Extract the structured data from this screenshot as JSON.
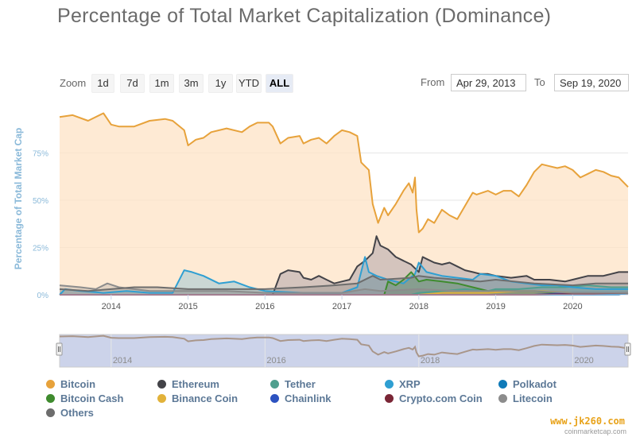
{
  "title": "Percentage of Total Market Capitalization (Dominance)",
  "zoom": {
    "label": "Zoom",
    "buttons": [
      "1d",
      "7d",
      "1m",
      "3m",
      "1y",
      "YTD",
      "ALL"
    ],
    "active": "ALL"
  },
  "range": {
    "from_label": "From",
    "from_value": "Apr 29, 2013",
    "to_label": "To",
    "to_value": "Sep 19, 2020"
  },
  "watermark": "www.jk260.com",
  "credits": "coinmarketcap.com",
  "chart_data": {
    "type": "area",
    "title": "Percentage of Total Market Capitalization (Dominance)",
    "ylabel": "Percentage of Total Market Cap",
    "xlabel": "",
    "xlim": [
      2013.33,
      2020.72
    ],
    "ylim": [
      0,
      100
    ],
    "y_ticks": [
      0,
      25,
      50,
      75
    ],
    "y_tick_labels": [
      "0%",
      "25%",
      "50%",
      "75%"
    ],
    "x_ticks": [
      2014,
      2015,
      2016,
      2017,
      2018,
      2019,
      2020
    ],
    "x_tick_labels": [
      "2014",
      "2015",
      "2016",
      "2017",
      "2018",
      "2019",
      "2020"
    ],
    "grid": true,
    "legend_position": "bottom",
    "series": [
      {
        "name": "Bitcoin",
        "color": "#e7a23b",
        "fill": "#fde3c5",
        "points": [
          [
            2013.33,
            94
          ],
          [
            2013.5,
            95
          ],
          [
            2013.7,
            92
          ],
          [
            2013.9,
            96
          ],
          [
            2013.95,
            93
          ],
          [
            2014.0,
            90
          ],
          [
            2014.1,
            89
          ],
          [
            2014.3,
            89
          ],
          [
            2014.5,
            92
          ],
          [
            2014.7,
            93
          ],
          [
            2014.8,
            92
          ],
          [
            2014.95,
            87
          ],
          [
            2015.0,
            79
          ],
          [
            2015.1,
            82
          ],
          [
            2015.2,
            83
          ],
          [
            2015.3,
            86
          ],
          [
            2015.5,
            88
          ],
          [
            2015.7,
            86
          ],
          [
            2015.8,
            89
          ],
          [
            2015.9,
            91
          ],
          [
            2016.05,
            91
          ],
          [
            2016.1,
            89
          ],
          [
            2016.2,
            80
          ],
          [
            2016.3,
            83
          ],
          [
            2016.45,
            84
          ],
          [
            2016.5,
            80
          ],
          [
            2016.6,
            82
          ],
          [
            2016.7,
            83
          ],
          [
            2016.8,
            80
          ],
          [
            2016.9,
            84
          ],
          [
            2017.0,
            87
          ],
          [
            2017.1,
            86
          ],
          [
            2017.2,
            84
          ],
          [
            2017.25,
            70
          ],
          [
            2017.35,
            66
          ],
          [
            2017.4,
            48
          ],
          [
            2017.47,
            38
          ],
          [
            2017.55,
            46
          ],
          [
            2017.6,
            42
          ],
          [
            2017.7,
            48
          ],
          [
            2017.8,
            55
          ],
          [
            2017.87,
            59
          ],
          [
            2017.92,
            54
          ],
          [
            2017.95,
            62
          ],
          [
            2017.97,
            45
          ],
          [
            2018.0,
            33
          ],
          [
            2018.05,
            35
          ],
          [
            2018.12,
            40
          ],
          [
            2018.2,
            38
          ],
          [
            2018.3,
            45
          ],
          [
            2018.4,
            42
          ],
          [
            2018.5,
            40
          ],
          [
            2018.6,
            47
          ],
          [
            2018.7,
            54
          ],
          [
            2018.75,
            53
          ],
          [
            2018.9,
            55
          ],
          [
            2019.0,
            53
          ],
          [
            2019.1,
            55
          ],
          [
            2019.2,
            55
          ],
          [
            2019.3,
            52
          ],
          [
            2019.4,
            58
          ],
          [
            2019.5,
            65
          ],
          [
            2019.6,
            69
          ],
          [
            2019.7,
            68
          ],
          [
            2019.8,
            67
          ],
          [
            2019.9,
            68
          ],
          [
            2020.0,
            66
          ],
          [
            2020.1,
            62
          ],
          [
            2020.2,
            64
          ],
          [
            2020.3,
            66
          ],
          [
            2020.4,
            65
          ],
          [
            2020.5,
            63
          ],
          [
            2020.6,
            62
          ],
          [
            2020.72,
            57
          ]
        ]
      },
      {
        "name": "Ethereum",
        "color": "#434348",
        "fill": "#c6b7b5",
        "points": [
          [
            2013.33,
            0
          ],
          [
            2016.1,
            0
          ],
          [
            2016.2,
            11
          ],
          [
            2016.3,
            13
          ],
          [
            2016.45,
            12
          ],
          [
            2016.5,
            9
          ],
          [
            2016.6,
            8
          ],
          [
            2016.7,
            10
          ],
          [
            2016.8,
            8
          ],
          [
            2016.9,
            6
          ],
          [
            2017.0,
            7
          ],
          [
            2017.1,
            8
          ],
          [
            2017.2,
            15
          ],
          [
            2017.3,
            18
          ],
          [
            2017.4,
            22
          ],
          [
            2017.45,
            31
          ],
          [
            2017.5,
            26
          ],
          [
            2017.6,
            24
          ],
          [
            2017.7,
            20
          ],
          [
            2017.8,
            18
          ],
          [
            2017.9,
            16
          ],
          [
            2018.0,
            12
          ],
          [
            2018.05,
            20
          ],
          [
            2018.1,
            19
          ],
          [
            2018.2,
            17
          ],
          [
            2018.3,
            16
          ],
          [
            2018.4,
            17
          ],
          [
            2018.5,
            15
          ],
          [
            2018.6,
            13
          ],
          [
            2018.7,
            12
          ],
          [
            2018.8,
            11
          ],
          [
            2018.9,
            11
          ],
          [
            2019.0,
            10
          ],
          [
            2019.2,
            9
          ],
          [
            2019.4,
            10
          ],
          [
            2019.5,
            8
          ],
          [
            2019.7,
            8
          ],
          [
            2019.9,
            7
          ],
          [
            2020.0,
            8
          ],
          [
            2020.2,
            10
          ],
          [
            2020.4,
            10
          ],
          [
            2020.5,
            11
          ],
          [
            2020.6,
            12
          ],
          [
            2020.72,
            12
          ]
        ]
      },
      {
        "name": "Tether",
        "color": "#4f9f8e",
        "points": [
          [
            2013.33,
            0
          ],
          [
            2017.9,
            0
          ],
          [
            2018.0,
            1
          ],
          [
            2018.3,
            2
          ],
          [
            2018.6,
            3
          ],
          [
            2018.9,
            2
          ],
          [
            2019.0,
            3
          ],
          [
            2019.3,
            3
          ],
          [
            2019.6,
            4
          ],
          [
            2019.9,
            4
          ],
          [
            2020.2,
            5
          ],
          [
            2020.5,
            4
          ],
          [
            2020.72,
            4
          ]
        ]
      },
      {
        "name": "XRP",
        "color": "#2f9fd2",
        "points": [
          [
            2013.33,
            0
          ],
          [
            2013.4,
            3
          ],
          [
            2013.6,
            2
          ],
          [
            2013.9,
            1
          ],
          [
            2014.2,
            2
          ],
          [
            2014.5,
            1
          ],
          [
            2014.8,
            1
          ],
          [
            2014.95,
            13
          ],
          [
            2015.05,
            12
          ],
          [
            2015.2,
            10
          ],
          [
            2015.4,
            6
          ],
          [
            2015.6,
            7
          ],
          [
            2015.8,
            4
          ],
          [
            2015.9,
            3
          ],
          [
            2016.0,
            2
          ],
          [
            2016.5,
            1
          ],
          [
            2017.0,
            1
          ],
          [
            2017.2,
            4
          ],
          [
            2017.3,
            20
          ],
          [
            2017.35,
            12
          ],
          [
            2017.45,
            10
          ],
          [
            2017.6,
            8
          ],
          [
            2017.8,
            6
          ],
          [
            2017.95,
            11
          ],
          [
            2018.0,
            17
          ],
          [
            2018.1,
            12
          ],
          [
            2018.3,
            10
          ],
          [
            2018.5,
            9
          ],
          [
            2018.7,
            8
          ],
          [
            2018.8,
            11
          ],
          [
            2019.0,
            10
          ],
          [
            2019.2,
            7
          ],
          [
            2019.4,
            6
          ],
          [
            2019.6,
            5
          ],
          [
            2019.8,
            5
          ],
          [
            2020.0,
            4
          ],
          [
            2020.3,
            3
          ],
          [
            2020.5,
            3
          ],
          [
            2020.72,
            3
          ]
        ]
      },
      {
        "name": "Polkadot",
        "color": "#0f7ab8",
        "points": [
          [
            2013.33,
            0
          ],
          [
            2020.6,
            0
          ],
          [
            2020.72,
            1
          ]
        ]
      },
      {
        "name": "Bitcoin Cash",
        "color": "#3f8b2e",
        "points": [
          [
            2013.33,
            0
          ],
          [
            2017.55,
            0
          ],
          [
            2017.6,
            7
          ],
          [
            2017.7,
            5
          ],
          [
            2017.8,
            8
          ],
          [
            2017.9,
            12
          ],
          [
            2018.0,
            7
          ],
          [
            2018.1,
            8
          ],
          [
            2018.3,
            7
          ],
          [
            2018.5,
            6
          ],
          [
            2018.7,
            4
          ],
          [
            2018.9,
            2
          ],
          [
            2019.2,
            2
          ],
          [
            2019.5,
            2
          ],
          [
            2019.8,
            1
          ],
          [
            2020.2,
            1
          ],
          [
            2020.72,
            1
          ]
        ]
      },
      {
        "name": "Binance Coin",
        "color": "#e2b23a",
        "points": [
          [
            2013.33,
            0
          ],
          [
            2018.0,
            0
          ],
          [
            2018.3,
            1
          ],
          [
            2018.9,
            1
          ],
          [
            2019.3,
            2
          ],
          [
            2019.6,
            2
          ],
          [
            2020.0,
            1
          ],
          [
            2020.72,
            1
          ]
        ]
      },
      {
        "name": "Chainlink",
        "color": "#2c52c0",
        "points": [
          [
            2013.33,
            0
          ],
          [
            2019.5,
            0
          ],
          [
            2020.0,
            1
          ],
          [
            2020.5,
            1
          ],
          [
            2020.72,
            1
          ]
        ]
      },
      {
        "name": "Crypto.com Coin",
        "color": "#7a2636",
        "points": [
          [
            2013.33,
            0
          ],
          [
            2019.0,
            0
          ],
          [
            2019.5,
            0
          ],
          [
            2020.72,
            1
          ]
        ]
      },
      {
        "name": "Litecoin",
        "color": "#8c8c8c",
        "points": [
          [
            2013.33,
            5
          ],
          [
            2013.6,
            4
          ],
          [
            2013.8,
            3
          ],
          [
            2013.95,
            6
          ],
          [
            2014.1,
            4
          ],
          [
            2014.3,
            3
          ],
          [
            2014.5,
            2
          ],
          [
            2014.8,
            2
          ],
          [
            2015.0,
            2
          ],
          [
            2015.5,
            2
          ],
          [
            2016.0,
            1
          ],
          [
            2016.5,
            1
          ],
          [
            2017.0,
            1
          ],
          [
            2017.3,
            3
          ],
          [
            2017.5,
            2
          ],
          [
            2018.0,
            3
          ],
          [
            2018.5,
            2
          ],
          [
            2019.0,
            2
          ],
          [
            2019.5,
            2
          ],
          [
            2020.0,
            1
          ],
          [
            2020.72,
            1
          ]
        ]
      },
      {
        "name": "Others",
        "color": "#6d6d6d",
        "points": [
          [
            2013.33,
            3
          ],
          [
            2013.7,
            2
          ],
          [
            2014.0,
            3
          ],
          [
            2014.3,
            4
          ],
          [
            2014.6,
            4
          ],
          [
            2015.0,
            3
          ],
          [
            2015.5,
            3
          ],
          [
            2016.0,
            3
          ],
          [
            2016.5,
            4
          ],
          [
            2016.9,
            5
          ],
          [
            2017.2,
            6
          ],
          [
            2017.4,
            10
          ],
          [
            2017.5,
            8
          ],
          [
            2017.9,
            9
          ],
          [
            2018.0,
            10
          ],
          [
            2018.2,
            9
          ],
          [
            2018.5,
            8
          ],
          [
            2018.8,
            7
          ],
          [
            2019.0,
            8
          ],
          [
            2019.5,
            6
          ],
          [
            2020.0,
            5
          ],
          [
            2020.3,
            6
          ],
          [
            2020.72,
            6
          ]
        ]
      }
    ],
    "navigator": {
      "x_tick_labels": [
        "2014",
        "2016",
        "2018",
        "2020"
      ],
      "x_ticks": [
        2014,
        2016,
        2018,
        2020
      ]
    }
  }
}
